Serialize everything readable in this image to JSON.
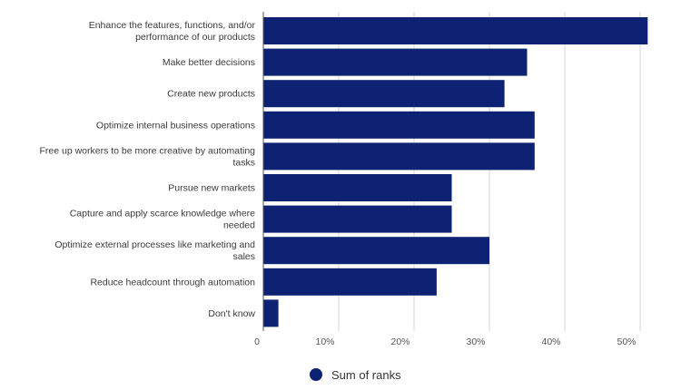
{
  "chart_data": {
    "type": "bar",
    "orientation": "horizontal",
    "categories": [
      [
        "Enhance the features, functions, and/or",
        "performance of our products"
      ],
      [
        "Make better decisions"
      ],
      [
        "Create new products"
      ],
      [
        "Optimize internal business operations"
      ],
      [
        "Free up workers to be more creative by automating",
        "tasks"
      ],
      [
        "Pursue new markets"
      ],
      [
        "Capture and apply scarce knowledge where",
        "needed"
      ],
      [
        "Optimize external processes like marketing and",
        "sales"
      ],
      [
        "Reduce headcount through automation"
      ],
      [
        "Don't know"
      ]
    ],
    "series": [
      {
        "name": "Sum of ranks",
        "color": "#0d2273",
        "values": [
          51,
          35,
          32,
          36,
          36,
          25,
          25,
          30,
          23,
          2
        ]
      }
    ],
    "xlim": [
      0,
      50
    ],
    "x_ticks": [
      {
        "value": 0,
        "label": "0"
      },
      {
        "value": 10,
        "label": "10%"
      },
      {
        "value": 20,
        "label": "20%"
      },
      {
        "value": 30,
        "label": "30%"
      },
      {
        "value": 40,
        "label": "40%"
      },
      {
        "value": 50,
        "label": "50%"
      }
    ],
    "grid": true,
    "legend_position": "bottom",
    "grid_color": "#d4d4d4",
    "axis_color": "#555555"
  }
}
